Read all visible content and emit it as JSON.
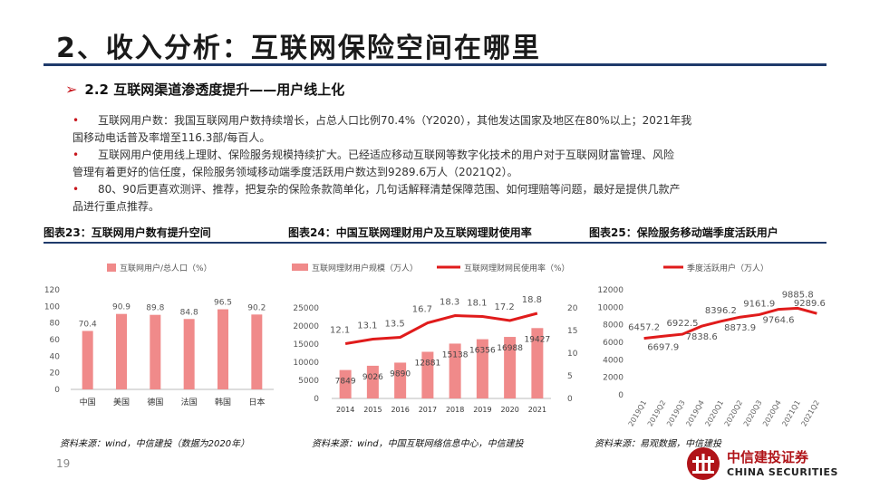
{
  "header": {
    "title": "2、收入分析：互联网保险空间在哪里",
    "subtitle_marker": "➢",
    "subtitle": "2.2 互联网渠道渗透度提升——用户线上化"
  },
  "bullets": [
    {
      "mark": "•",
      "line1": "互联网用户数：我国互联网用户数持续增长，占总人口比例70.4%（Y2020），其他发达国家及地区在80%以上；2021年我",
      "line2": "国移动电话普及率增至116.3部/每百人。"
    },
    {
      "mark": "•",
      "line1": "互联网用户使用线上理财、保险服务规模持续扩大。已经适应移动互联网等数字化技术的用户对于互联网财富管理、风险",
      "line2": "管理有着更好的信任度，保险服务领域移动端季度活跃用户数达到9289.6万人（2021Q2）。"
    },
    {
      "mark": "•",
      "line1": "80、90后更喜欢测评、推荐，把复杂的保险条款简单化，几句话解释清楚保障范围、如何理赔等问题，最好是提供几款产",
      "line2": "品进行重点推荐。"
    }
  ],
  "captions": {
    "c1": "图表23：互联网用户数有提升空间",
    "c2": "图表24：中国互联网理财用户及互联网理财使用率",
    "c3": "图表25：保险服务移动端季度活跃用户"
  },
  "sources": {
    "s1": "资料来源：wind，中信建投（数据为2020年）",
    "s2": "资料来源：wind，中国互联网络信息中心，中信建投",
    "s3": "资料来源：易观数据，中信建投"
  },
  "page_number": "19",
  "logo": {
    "cn": "中信建投证券",
    "en": "CHINA SECURITIES",
    "icon": "citic-logo-icon"
  },
  "colors": {
    "bar": "#f08a8a",
    "line": "#e01b1b",
    "rule": "#1f3a6b",
    "accent": "#c8171e"
  },
  "chart_data": [
    {
      "type": "bar",
      "legend": "互联网用户/总人口（%）",
      "categories": [
        "中国",
        "美国",
        "德国",
        "法国",
        "韩国",
        "日本"
      ],
      "values": [
        70.4,
        90.9,
        89.8,
        84.8,
        96.5,
        90.2
      ],
      "value_labels": [
        "70.4",
        "90.9",
        "89.8",
        "84.8",
        "96.5",
        "90.2"
      ],
      "ylim": [
        0,
        120
      ],
      "yticks": [
        "0",
        "20",
        "40",
        "60",
        "80",
        "100",
        "120"
      ],
      "grid": false,
      "legend_position": "top"
    },
    {
      "type": "bar+line",
      "categories": [
        "2014",
        "2015",
        "2016",
        "2017",
        "2018",
        "2019",
        "2020",
        "2021"
      ],
      "series": [
        {
          "name": "互联网理财用户规模（万人）",
          "type": "bar",
          "axis": "left",
          "values": [
            7849,
            9026,
            9890,
            12881,
            15138,
            16356,
            16988,
            19427
          ],
          "labels": [
            "7849",
            "9026",
            "9890",
            "12881",
            "15138",
            "16356",
            "16988",
            "19427"
          ]
        },
        {
          "name": "互联网理财网民使用率（%）",
          "type": "line",
          "axis": "right",
          "values": [
            12.1,
            13.1,
            13.5,
            16.7,
            18.3,
            18.1,
            17.2,
            18.8
          ],
          "labels": [
            "12.1",
            "13.1",
            "13.5",
            "16.7",
            "18.3",
            "18.1",
            "17.2",
            "18.8"
          ]
        }
      ],
      "ylim_left": [
        0,
        25000
      ],
      "yticks_left": [
        "0",
        "5000",
        "10000",
        "15000",
        "20000",
        "25000"
      ],
      "ylim_right": [
        0,
        20
      ],
      "yticks_right": [
        "0",
        "5",
        "10",
        "15",
        "20"
      ],
      "grid": false,
      "legend_position": "top"
    },
    {
      "type": "line",
      "legend": "季度活跃用户（万人）",
      "categories": [
        "2019Q1",
        "2019Q2",
        "2019Q3",
        "2019Q4",
        "2020Q1",
        "2020Q2",
        "2020Q3",
        "2020Q4",
        "2021Q1",
        "2021Q2"
      ],
      "values": [
        6457.2,
        6697.9,
        6922.5,
        7838.6,
        8396.2,
        8873.9,
        9161.9,
        9764.6,
        9885.8,
        9289.6
      ],
      "labels": [
        "6457.2",
        "6697.9",
        "6922.5",
        "7838.6",
        "8396.2",
        "8873.9",
        "9161.9",
        "9764.6",
        "9885.8",
        "9289.6"
      ],
      "ylim": [
        0,
        12000
      ],
      "yticks": [
        "0",
        "2000",
        "4000",
        "6000",
        "8000",
        "10000",
        "12000"
      ],
      "grid": false,
      "legend_position": "top"
    }
  ]
}
